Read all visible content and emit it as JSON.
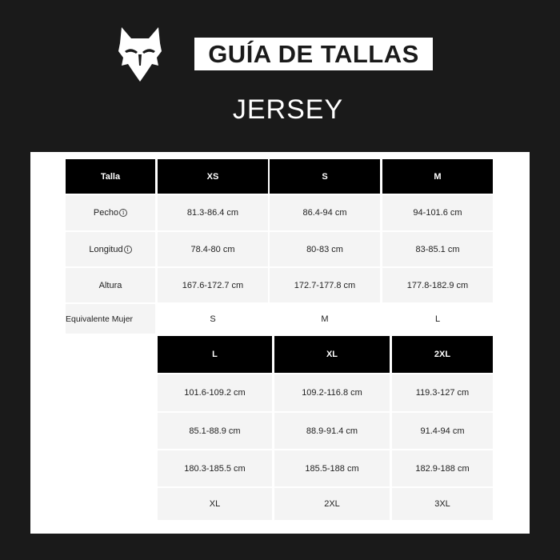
{
  "header": {
    "title": "GUÍA DE TALLAS",
    "subtitle": "JERSEY",
    "logo": "fox-head-logo"
  },
  "table1": {
    "header": [
      "Talla",
      "XS",
      "S",
      "M"
    ],
    "rows": [
      {
        "label": "Pecho",
        "info_icon": true,
        "values": [
          "81.3-86.4 cm",
          "86.4-94 cm",
          "94-101.6 cm"
        ]
      },
      {
        "label": "Longitud",
        "info_icon": true,
        "values": [
          "78.4-80 cm",
          "80-83 cm",
          "83-85.1 cm"
        ]
      },
      {
        "label": "Altura",
        "values": [
          "167.6-172.7 cm",
          "172.7-177.8 cm",
          "177.8-182.9 cm"
        ]
      },
      {
        "label": "Equivalente Mujer",
        "values": [
          "S",
          "M",
          "L"
        ]
      }
    ]
  },
  "table2": {
    "header": [
      "L",
      "XL",
      "2XL"
    ],
    "rows": [
      [
        "101.6-109.2 cm",
        "109.2-116.8 cm",
        "119.3-127 cm"
      ],
      [
        "85.1-88.9 cm",
        "88.9-91.4 cm",
        "91.4-94 cm"
      ],
      [
        "180.3-185.5 cm",
        "185.5-188 cm",
        "182.9-188 cm"
      ],
      [
        "XL",
        "2XL",
        "3XL"
      ]
    ]
  },
  "info_glyph": "i"
}
